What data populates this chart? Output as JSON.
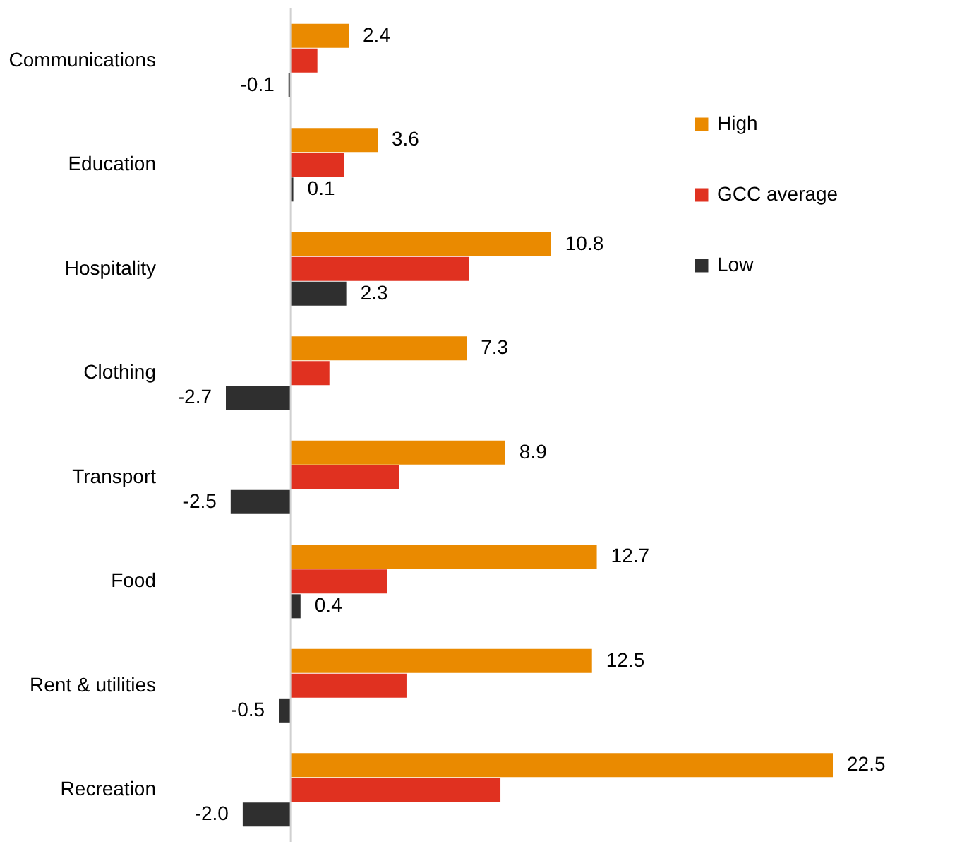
{
  "chart_data": {
    "type": "bar",
    "orientation": "horizontal",
    "categories": [
      "Communications",
      "Education",
      "Hospitality",
      "Clothing",
      "Transport",
      "Food",
      "Rent & utilities",
      "Recreation"
    ],
    "series": [
      {
        "name": "High",
        "color": "#ea8a00",
        "values": [
          2.4,
          3.6,
          10.8,
          7.3,
          8.9,
          12.7,
          12.5,
          22.5
        ],
        "value_labels": [
          "2.4",
          "3.6",
          "10.8",
          "7.3",
          "8.9",
          "12.7",
          "12.5",
          "22.5"
        ]
      },
      {
        "name": "GCC average",
        "color": "#e03120",
        "values": [
          1.1,
          2.2,
          7.4,
          1.6,
          4.5,
          4.0,
          4.8,
          8.7
        ]
      },
      {
        "name": "Low",
        "color": "#2f2f2f",
        "values": [
          -0.1,
          0.1,
          2.3,
          -2.7,
          -2.5,
          0.4,
          -0.5,
          -2.0
        ],
        "value_labels": [
          "-0.1",
          "0.1",
          "2.3",
          "-2.7",
          "-2.5",
          "0.4",
          "-0.5",
          "-2.0"
        ]
      }
    ],
    "legend": "right"
  }
}
